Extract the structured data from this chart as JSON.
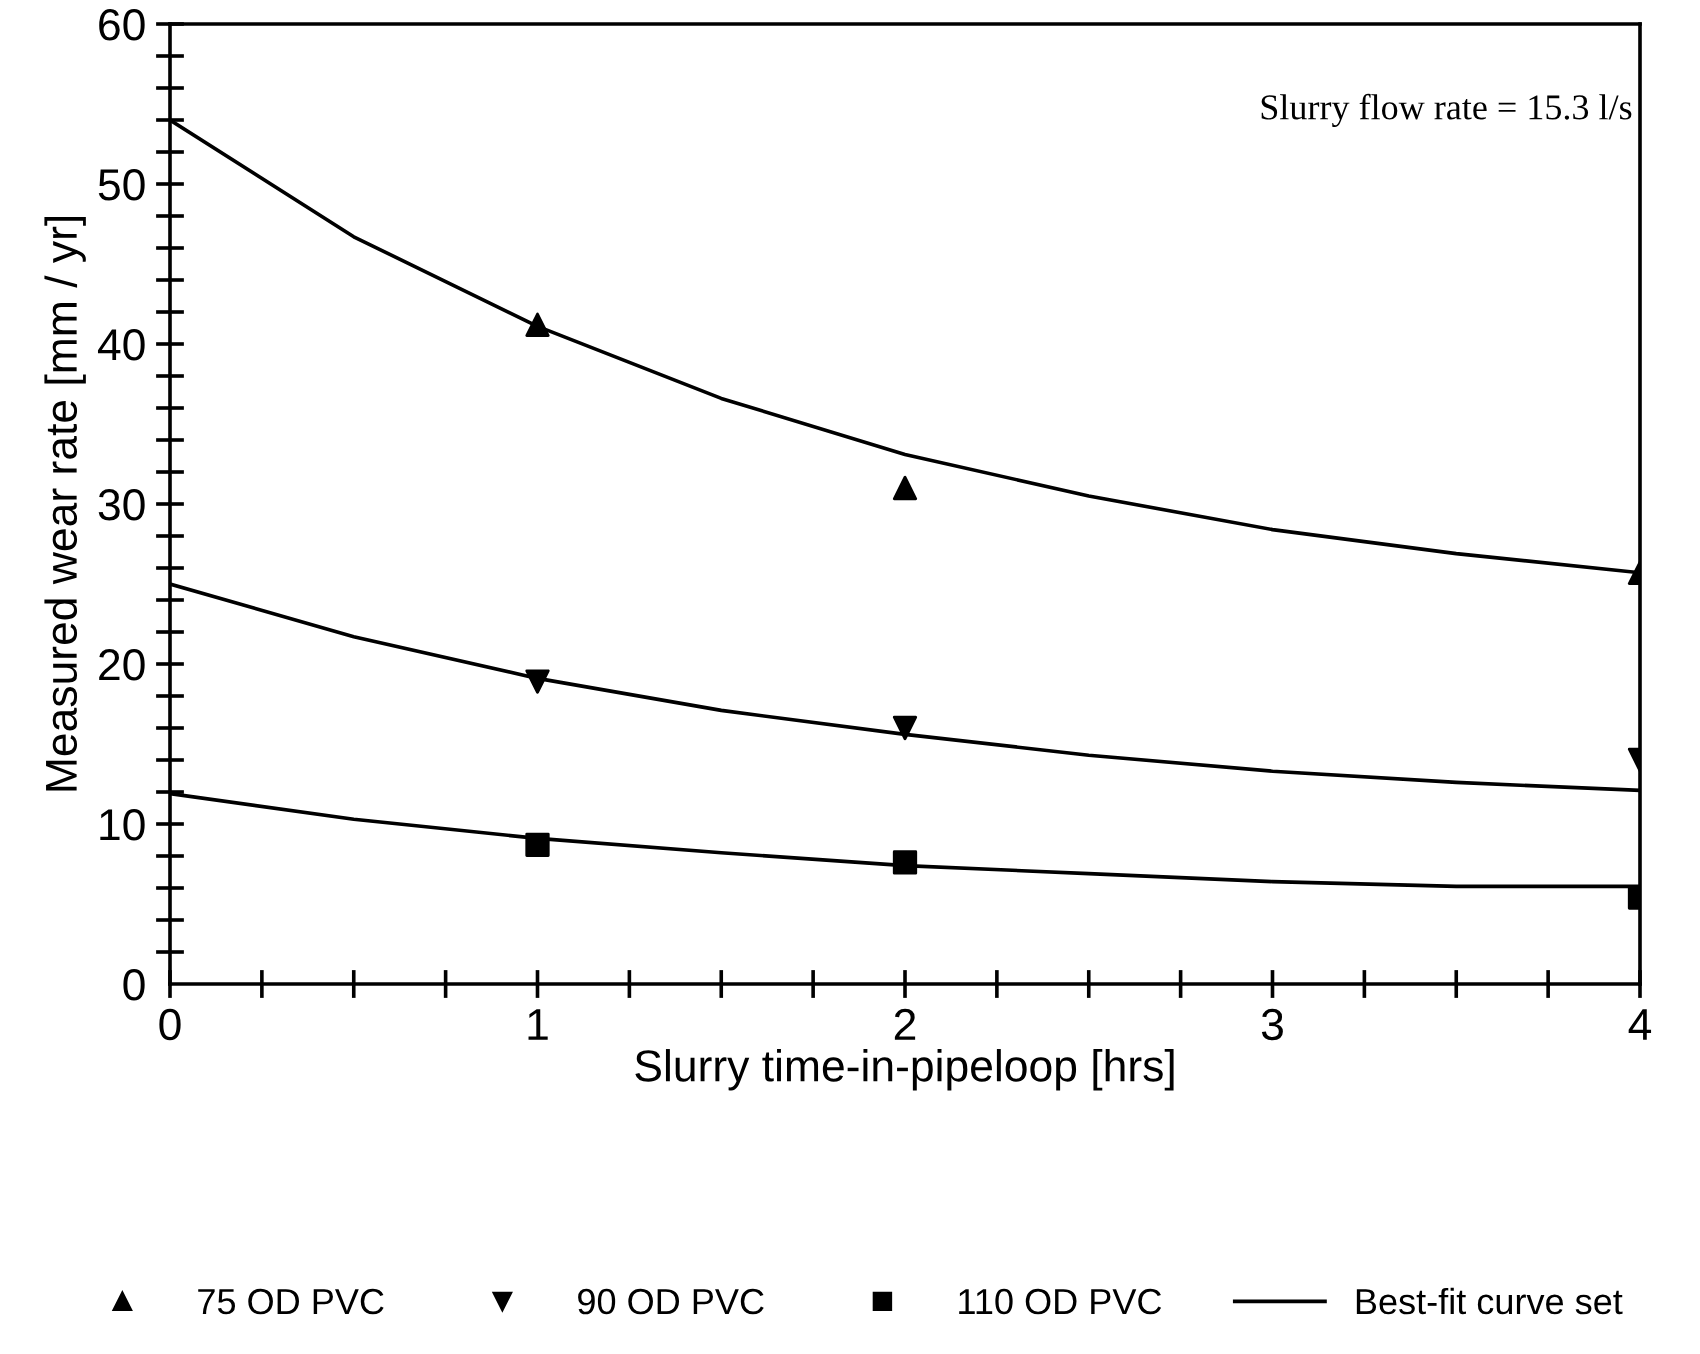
{
  "chart_data": {
    "type": "scatter",
    "xlabel": "Slurry time-in-pipeloop [hrs]",
    "ylabel": "Measured wear rate [mm / yr]",
    "annotations": [
      "Slurry flow rate = 15.3 l/s"
    ],
    "xlim": [
      0,
      4
    ],
    "ylim": [
      0,
      60
    ],
    "xticks": [
      0,
      {
        "value": 0.25,
        "label": null
      },
      {
        "value": 0.5,
        "label": null
      },
      {
        "value": 0.75,
        "label": null
      },
      1,
      {
        "value": 1.25,
        "label": null
      },
      {
        "value": 1.5,
        "label": null
      },
      {
        "value": 1.75,
        "label": null
      },
      2,
      {
        "value": 2.25,
        "label": null
      },
      {
        "value": 2.5,
        "label": null
      },
      {
        "value": 2.75,
        "label": null
      },
      3,
      {
        "value": 3.25,
        "label": null
      },
      {
        "value": 3.5,
        "label": null
      },
      {
        "value": 3.75,
        "label": null
      },
      4
    ],
    "yticks": [
      0,
      {
        "value": 2,
        "label": null
      },
      {
        "value": 4,
        "label": null
      },
      {
        "value": 6,
        "label": null
      },
      {
        "value": 8,
        "label": null
      },
      10,
      {
        "value": 12,
        "label": null
      },
      {
        "value": 14,
        "label": null
      },
      {
        "value": 16,
        "label": null
      },
      {
        "value": 18,
        "label": null
      },
      20,
      {
        "value": 22,
        "label": null
      },
      {
        "value": 24,
        "label": null
      },
      {
        "value": 26,
        "label": null
      },
      {
        "value": 28,
        "label": null
      },
      30,
      {
        "value": 32,
        "label": null
      },
      {
        "value": 34,
        "label": null
      },
      {
        "value": 36,
        "label": null
      },
      {
        "value": 38,
        "label": null
      },
      40,
      {
        "value": 42,
        "label": null
      },
      {
        "value": 44,
        "label": null
      },
      {
        "value": 46,
        "label": null
      },
      {
        "value": 48,
        "label": null
      },
      50,
      {
        "value": 52,
        "label": null
      },
      {
        "value": 54,
        "label": null
      },
      {
        "value": 56,
        "label": null
      },
      {
        "value": 58,
        "label": null
      },
      60
    ],
    "grid": false,
    "legend": "bottom",
    "series": [
      {
        "name": "75 OD PVC",
        "color": "#000000",
        "marker": "triangle",
        "x": [
          1,
          2,
          4
        ],
        "values": [
          41.2,
          31,
          25.7
        ]
      },
      {
        "name": "90 OD PVC",
        "color": "#000000",
        "marker": "triangle_down",
        "x": [
          1,
          2,
          4
        ],
        "values": [
          18.9,
          16,
          14
        ]
      },
      {
        "name": "110 OD PVC",
        "color": "#000000",
        "marker": "square",
        "x": [
          1,
          2,
          4
        ],
        "values": [
          8.7,
          7.6,
          5.4
        ]
      },
      {
        "name": "Best-fit curve set",
        "type": "line",
        "color": "#000000",
        "line_style": "solid",
        "marker": "none",
        "x": [
          0,
          0.5,
          1,
          1.5,
          2,
          2.5,
          3,
          3.5,
          4
        ],
        "values": [
          54,
          46.7,
          41.1,
          36.6,
          33.1,
          30.5,
          28.4,
          26.9,
          25.7
        ]
      },
      {
        "type": "line",
        "color": "#000000",
        "line_style": "solid",
        "marker": "none",
        "x": [
          0,
          0.5,
          1,
          1.5,
          2,
          2.5,
          3,
          3.5,
          4
        ],
        "values": [
          25,
          21.7,
          19.1,
          17.1,
          15.6,
          14.3,
          13.3,
          12.6,
          12.1
        ]
      },
      {
        "type": "line",
        "color": "#000000",
        "line_style": "solid",
        "marker": "none",
        "x": [
          0,
          0.5,
          1,
          1.5,
          2,
          2.5,
          3,
          3.5,
          4
        ],
        "values": [
          11.9,
          10.3,
          9.1,
          8.2,
          7.4,
          6.9,
          6.4,
          6.1,
          6.1
        ]
      }
    ]
  }
}
